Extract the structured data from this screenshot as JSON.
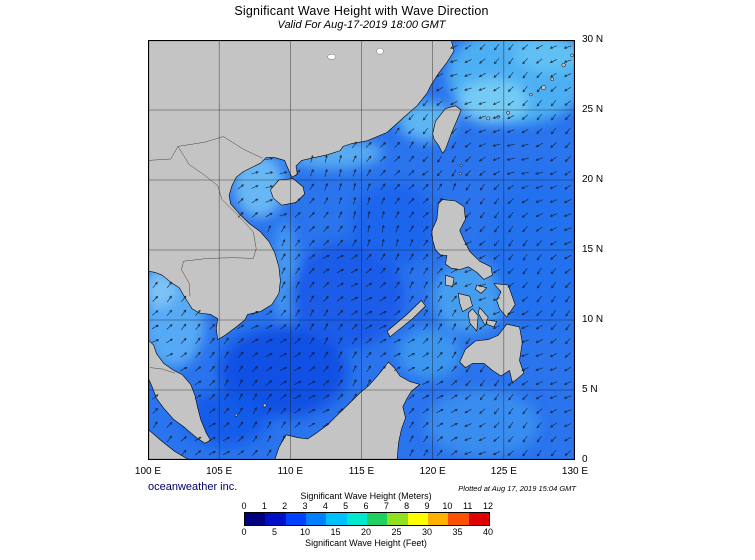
{
  "title": "Significant Wave Height with Wave Direction",
  "subtitle": "Valid For Aug-17-2019 18:00 GMT",
  "credit": "oceanweather inc.",
  "plotted_note": "Plotted at Aug 17, 2019 15:04 GMT",
  "map": {
    "extent": {
      "lon_min": 100,
      "lon_max": 130,
      "lat_min": 0,
      "lat_max": 30
    },
    "lat_ticks": [
      {
        "v": 30,
        "label": "30 N"
      },
      {
        "v": 25,
        "label": "25 N"
      },
      {
        "v": 20,
        "label": "20 N"
      },
      {
        "v": 15,
        "label": "15 N"
      },
      {
        "v": 10,
        "label": "10 N"
      },
      {
        "v": 5,
        "label": "5 N"
      },
      {
        "v": 0,
        "label": "0"
      }
    ],
    "lon_ticks": [
      {
        "v": 100,
        "label": "100 E"
      },
      {
        "v": 105,
        "label": "105 E"
      },
      {
        "v": 110,
        "label": "110 E"
      },
      {
        "v": 115,
        "label": "115 E"
      },
      {
        "v": 120,
        "label": "120 E"
      },
      {
        "v": 125,
        "label": "125 E"
      },
      {
        "v": 130,
        "label": "130 E"
      }
    ],
    "grid_lon": [
      105,
      110,
      115,
      120,
      125
    ],
    "grid_lat": [
      5,
      10,
      15,
      20,
      25
    ],
    "ocean_color": "#2a74ee",
    "land_color": "#c4c4c4",
    "arrow_color": "#141414",
    "grid_color": "#1a1a1a"
  },
  "legend": {
    "meters_label": "Significant Wave Height (Meters)",
    "feet_label": "Significant Wave Height (Feet)",
    "meters_ticks": [
      "0",
      "1",
      "2",
      "3",
      "4",
      "5",
      "6",
      "7",
      "8",
      "9",
      "10",
      "11",
      "12"
    ],
    "feet_ticks": [
      "0",
      "5",
      "10",
      "15",
      "20",
      "25",
      "30",
      "35",
      "40"
    ],
    "colors": [
      "#00007f",
      "#0010c8",
      "#0040ff",
      "#0080ff",
      "#00c0ff",
      "#00e8d0",
      "#20d060",
      "#90e020",
      "#ffff00",
      "#ffb000",
      "#ff5000",
      "#e00000"
    ]
  }
}
